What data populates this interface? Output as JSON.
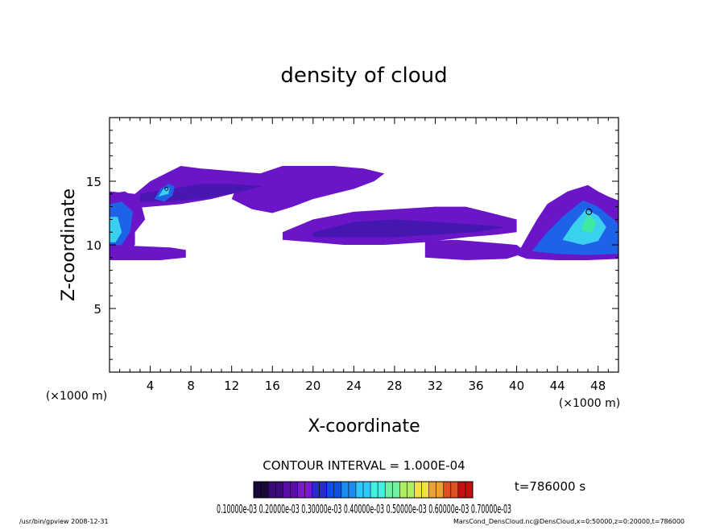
{
  "chart_data": {
    "type": "heatmap",
    "title": "density of cloud",
    "xlabel": "X-coordinate",
    "ylabel": "Z-coordinate",
    "x_unit_left": "(×1000 m)",
    "x_unit_right": "(×1000 m)",
    "xlim": [
      0,
      50
    ],
    "ylim": [
      0,
      20
    ],
    "x_ticks": [
      4,
      8,
      12,
      16,
      20,
      24,
      28,
      32,
      36,
      40,
      44,
      48
    ],
    "x_tick_labels": [
      "4",
      "8",
      "12",
      "16",
      "20",
      "24",
      "28",
      "32",
      "36",
      "40",
      "44",
      "48"
    ],
    "y_ticks": [
      5,
      10,
      15
    ],
    "y_tick_labels": [
      "5",
      "10",
      "15"
    ],
    "contour_interval_label": "CONTOUR INTERVAL = 1.000E-04",
    "time_label": "t=786000 s",
    "colorbar_range": [
      0.0001,
      0.0007
    ],
    "colorbar_labels_text": "0.10000e-03 0.20000e-03 0.30000e-03 0.40000e-03 0.50000e-03 0.60000e-03 0.70000e-03",
    "regions": [
      {
        "name": "upper-left layer",
        "x": [
          0,
          16
        ],
        "z": [
          13,
          16.5
        ],
        "level": 0.00015
      },
      {
        "name": "upper-mid layer",
        "x": [
          14,
          28
        ],
        "z": [
          12.5,
          16.2
        ],
        "level": 0.0001
      },
      {
        "name": "left column",
        "x": [
          0,
          3
        ],
        "z": [
          9,
          14.5
        ],
        "level": 0.0003
      },
      {
        "name": "lower-left layer",
        "x": [
          0,
          7.5
        ],
        "z": [
          8.8,
          10.2
        ],
        "level": 0.0001
      },
      {
        "name": "central band",
        "x": [
          17,
          40
        ],
        "z": [
          9.5,
          13
        ],
        "level": 0.00015
      },
      {
        "name": "lower-right layer",
        "x": [
          31,
          41
        ],
        "z": [
          8.8,
          10.3
        ],
        "level": 0.0001
      },
      {
        "name": "right cloud",
        "x": [
          40,
          50
        ],
        "z": [
          8.8,
          14.7
        ],
        "level": 0.0004
      },
      {
        "name": "upper-left core",
        "x": [
          4.5,
          6.2
        ],
        "z": [
          13.3,
          14.8
        ],
        "level": 0.0005
      }
    ]
  },
  "footer": {
    "left": "/usr/bin/gpview   2008-12-31",
    "right": "MarsCond_DensCloud.nc@DensCloud,x=0:50000,z=0:20000,t=786000"
  },
  "colors": {
    "palette": [
      "#1a0a3a",
      "#3a0a7a",
      "#5a10a8",
      "#7a1ad0",
      "#2a2cc8",
      "#1050e0",
      "#1a8cf0",
      "#30c8f8",
      "#40f0e0",
      "#70f0a0",
      "#b0f060",
      "#f0e040",
      "#f0a030",
      "#e05020",
      "#c01010"
    ],
    "cloud_main": "#6a16c8",
    "cloud_dark": "#3a18a8",
    "cloud_blue": "#1e62e8",
    "cloud_cyan": "#3ad0f0",
    "cloud_green": "#40e8a0"
  }
}
